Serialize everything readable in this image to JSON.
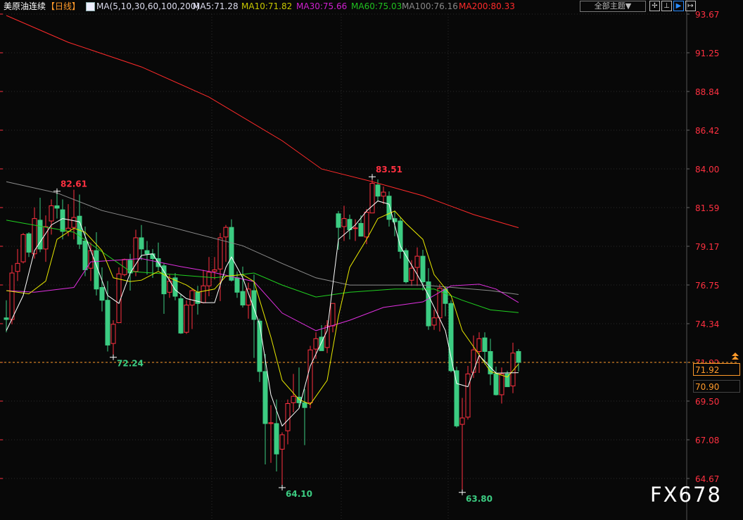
{
  "header": {
    "instrument": "美原油连续",
    "period": "【日线】",
    "ma_params": "MA(5,10,30,60,100,200)",
    "ma5": "MA5:71.28",
    "ma10": "MA10:71.82",
    "ma30": "MA30:75.66",
    "ma60": "MA60:75.03",
    "ma100": "MA100:76.16",
    "ma200": "MA200:80.33",
    "theme_button": "全部主题▼",
    "tools": [
      {
        "icon": "crosshair-icon",
        "glyph": "✢"
      },
      {
        "icon": "range-icon",
        "glyph": "⊥"
      },
      {
        "icon": "play-cursor-icon",
        "glyph": "▶"
      },
      {
        "icon": "move-right-icon",
        "glyph": "↦"
      }
    ]
  },
  "price_boxes": {
    "last": "71.92",
    "secondary": "70.90"
  },
  "watermark": "FX678",
  "colors": {
    "up": "#ff3040",
    "down": "#3ccc82",
    "ma5": "#ffffff",
    "ma10": "#e8e800",
    "ma30": "#e030e0",
    "ma60": "#20d020",
    "ma100": "#8c8c8c",
    "ma200": "#ff2a2a",
    "axis_text": "#ff3040",
    "last_line": "#ff9a2a"
  },
  "chart_data": {
    "type": "candlestick",
    "y_ticks": [
      "93.67",
      "91.25",
      "88.84",
      "86.42",
      "84.00",
      "81.59",
      "79.17",
      "76.75",
      "74.34",
      "71.92",
      "69.50",
      "67.08",
      "64.67"
    ],
    "ylim": [
      64.67,
      93.67
    ],
    "grid": true,
    "last_price": 71.92,
    "candles_ohlc": [
      [
        74.7,
        75.8,
        73.8,
        74.6
      ],
      [
        74.6,
        78.0,
        74.3,
        77.5
      ],
      [
        77.6,
        79.0,
        77.0,
        78.1
      ],
      [
        78.2,
        80.0,
        78.1,
        79.9
      ],
      [
        79.95,
        80.05,
        78.5,
        78.8
      ],
      [
        78.7,
        81.6,
        78.4,
        80.9
      ],
      [
        80.8,
        82.2,
        78.8,
        79.0
      ],
      [
        79.0,
        81.1,
        78.2,
        80.4
      ],
      [
        80.75,
        82.1,
        79.9,
        81.7
      ],
      [
        81.7,
        82.61,
        80.9,
        81.55
      ],
      [
        81.45,
        82.1,
        79.6,
        80.1
      ],
      [
        80.1,
        81.8,
        79.8,
        80.3
      ],
      [
        80.35,
        82.7,
        79.6,
        80.97
      ],
      [
        81.05,
        82.4,
        79.0,
        79.3
      ],
      [
        79.5,
        80.4,
        77.3,
        77.7
      ],
      [
        77.8,
        79.4,
        77.0,
        78.9
      ],
      [
        78.9,
        80.05,
        76.1,
        76.5
      ],
      [
        76.6,
        77.85,
        75.1,
        75.8
      ],
      [
        75.8,
        77.0,
        72.6,
        73.0
      ],
      [
        73.1,
        74.55,
        72.24,
        74.3
      ],
      [
        74.4,
        77.85,
        74.4,
        77.45
      ],
      [
        77.4,
        78.4,
        77.3,
        78.35
      ],
      [
        78.3,
        78.7,
        76.4,
        77.5
      ],
      [
        77.6,
        80.2,
        77.3,
        79.7
      ],
      [
        79.7,
        80.5,
        78.3,
        79.0
      ],
      [
        78.9,
        79.5,
        77.4,
        78.7
      ],
      [
        78.7,
        79.0,
        77.2,
        78.4
      ],
      [
        78.4,
        79.4,
        77.65,
        77.9
      ],
      [
        77.95,
        78.1,
        74.95,
        76.2
      ],
      [
        76.3,
        77.4,
        75.95,
        77.0
      ],
      [
        77.2,
        77.5,
        75.8,
        76.05
      ],
      [
        75.9,
        76.2,
        73.7,
        73.75
      ],
      [
        73.8,
        75.8,
        73.7,
        75.5
      ],
      [
        75.5,
        76.5,
        74.0,
        76.4
      ],
      [
        76.3,
        76.7,
        74.9,
        75.6
      ],
      [
        75.65,
        77.7,
        75.6,
        76.7
      ],
      [
        76.7,
        78.5,
        76.05,
        77.55
      ],
      [
        77.6,
        78.5,
        77.1,
        77.7
      ],
      [
        77.75,
        80.0,
        75.75,
        79.7
      ],
      [
        79.75,
        80.5,
        78.2,
        80.35
      ],
      [
        80.35,
        80.85,
        76.97,
        77.05
      ],
      [
        77.2,
        77.6,
        75.95,
        76.3
      ],
      [
        76.35,
        77.9,
        75.35,
        75.5
      ],
      [
        75.5,
        76.9,
        74.65,
        76.5
      ],
      [
        76.4,
        77.4,
        72.2,
        74.6
      ],
      [
        74.5,
        74.65,
        70.7,
        71.35
      ],
      [
        71.35,
        72.45,
        65.55,
        68.1
      ],
      [
        68.1,
        69.25,
        65.65,
        68.15
      ],
      [
        68.1,
        69.6,
        65.11,
        66.2
      ],
      [
        66.5,
        67.55,
        64.1,
        67.4
      ],
      [
        67.65,
        69.6,
        66.8,
        69.35
      ],
      [
        69.4,
        71.2,
        68.8,
        69.8
      ],
      [
        69.75,
        71.6,
        69.1,
        69.4
      ],
      [
        69.4,
        70.25,
        66.75,
        69.1
      ],
      [
        69.4,
        72.95,
        69.06,
        72.7
      ],
      [
        72.75,
        73.8,
        72.14,
        73.4
      ],
      [
        73.5,
        74.25,
        72.65,
        72.65
      ],
      [
        72.85,
        74.55,
        72.5,
        74.2
      ],
      [
        74.2,
        75.6,
        73.8,
        75.6
      ],
      [
        81.2,
        81.37,
        78.95,
        80.35
      ],
      [
        80.4,
        81.7,
        79.5,
        80.9
      ],
      [
        80.85,
        81.15,
        79.6,
        80.2
      ],
      [
        80.3,
        80.85,
        79.5,
        80.32
      ],
      [
        80.6,
        81.1,
        79.8,
        79.8
      ],
      [
        79.75,
        81.5,
        79.3,
        81.3
      ],
      [
        81.25,
        83.51,
        81.25,
        83.1
      ],
      [
        83.0,
        83.35,
        82.0,
        82.3
      ],
      [
        82.3,
        82.9,
        81.8,
        82.55
      ],
      [
        82.3,
        82.6,
        80.4,
        80.85
      ],
      [
        80.9,
        81.4,
        79.8,
        80.7
      ],
      [
        80.75,
        80.95,
        78.4,
        78.85
      ],
      [
        78.9,
        79.05,
        76.85,
        76.95
      ],
      [
        77.05,
        78.3,
        76.7,
        77.8
      ],
      [
        77.85,
        79.1,
        76.7,
        78.55
      ],
      [
        78.55,
        78.95,
        76.4,
        76.95
      ],
      [
        76.95,
        77.8,
        73.95,
        74.2
      ],
      [
        74.25,
        75.2,
        73.95,
        74.7
      ],
      [
        74.7,
        76.8,
        73.85,
        76.55
      ],
      [
        76.5,
        76.65,
        74.8,
        75.6
      ],
      [
        75.6,
        75.8,
        71.3,
        71.4
      ],
      [
        71.4,
        71.65,
        67.85,
        67.95
      ],
      [
        68.05,
        69.7,
        63.8,
        68.45
      ],
      [
        68.5,
        71.7,
        68.35,
        71.2
      ],
      [
        71.3,
        73.6,
        70.95,
        72.7
      ],
      [
        72.6,
        73.8,
        71.26,
        73.4
      ],
      [
        73.45,
        73.8,
        71.8,
        72.6
      ],
      [
        72.6,
        73.4,
        70.5,
        71.2
      ],
      [
        71.2,
        71.65,
        69.85,
        69.9
      ],
      [
        69.9,
        71.6,
        69.35,
        71.2
      ],
      [
        71.2,
        71.4,
        70.4,
        70.4
      ],
      [
        70.45,
        73.15,
        70.0,
        72.5
      ],
      [
        72.6,
        72.75,
        71.35,
        71.92
      ]
    ],
    "moving_averages": [
      {
        "name": "MA200",
        "color_key": "ma200",
        "points": [
          [
            1,
            93.58
          ],
          [
            12,
            91.91
          ],
          [
            25,
            90.37
          ],
          [
            37,
            88.49
          ],
          [
            50,
            85.76
          ],
          [
            57,
            84.0
          ],
          [
            66,
            83.21
          ],
          [
            75,
            82.33
          ],
          [
            84,
            81.15
          ],
          [
            92,
            80.33
          ]
        ]
      },
      {
        "name": "MA100",
        "color_key": "ma100",
        "points": [
          [
            1,
            83.2
          ],
          [
            10,
            82.5
          ],
          [
            18,
            81.4
          ],
          [
            31,
            80.3
          ],
          [
            43,
            79.2
          ],
          [
            50,
            78.1
          ],
          [
            56,
            77.2
          ],
          [
            62,
            76.75
          ],
          [
            75,
            76.75
          ],
          [
            87,
            76.4
          ],
          [
            92,
            76.16
          ]
        ]
      },
      {
        "name": "MA60",
        "color_key": "ma60",
        "points": [
          [
            1,
            80.8
          ],
          [
            13,
            80.05
          ],
          [
            23,
            77.6
          ],
          [
            31,
            77.4
          ],
          [
            38,
            77.2
          ],
          [
            45,
            77.5
          ],
          [
            50,
            76.75
          ],
          [
            56,
            76.0
          ],
          [
            62,
            76.3
          ],
          [
            70,
            76.5
          ],
          [
            77,
            76.5
          ],
          [
            82,
            75.8
          ],
          [
            87,
            75.2
          ],
          [
            92,
            75.03
          ]
        ]
      },
      {
        "name": "MA30",
        "color_key": "ma30",
        "points": [
          [
            1,
            76.4
          ],
          [
            6,
            76.3
          ],
          [
            13,
            76.6
          ],
          [
            16,
            78.2
          ],
          [
            25,
            78.4
          ],
          [
            32,
            77.9
          ],
          [
            37,
            77.6
          ],
          [
            45,
            76.97
          ],
          [
            50,
            75.0
          ],
          [
            56,
            73.9
          ],
          [
            62,
            74.55
          ],
          [
            68,
            75.35
          ],
          [
            75,
            75.7
          ],
          [
            80,
            76.7
          ],
          [
            85,
            76.8
          ],
          [
            88,
            76.5
          ],
          [
            92,
            75.66
          ]
        ]
      },
      {
        "name": "MA10",
        "color_key": "ma10",
        "points": [
          [
            1,
            76.4
          ],
          [
            5,
            76.2
          ],
          [
            8,
            77.0
          ],
          [
            10,
            79.6
          ],
          [
            13,
            80.3
          ],
          [
            15,
            80.05
          ],
          [
            18,
            78.9
          ],
          [
            20,
            77.2
          ],
          [
            23,
            76.97
          ],
          [
            25,
            77.05
          ],
          [
            28,
            77.6
          ],
          [
            30,
            77.2
          ],
          [
            33,
            76.75
          ],
          [
            35,
            76.3
          ],
          [
            38,
            76.5
          ],
          [
            40,
            77.3
          ],
          [
            43,
            77.4
          ],
          [
            45,
            76.97
          ],
          [
            48,
            73.5
          ],
          [
            50,
            70.8
          ],
          [
            53,
            69.6
          ],
          [
            55,
            69.3
          ],
          [
            58,
            70.8
          ],
          [
            60,
            74.8
          ],
          [
            62,
            77.85
          ],
          [
            65,
            79.6
          ],
          [
            67,
            80.9
          ],
          [
            70,
            81.37
          ],
          [
            72,
            80.6
          ],
          [
            75,
            79.6
          ],
          [
            77,
            77.4
          ],
          [
            80,
            76.1
          ],
          [
            82,
            73.9
          ],
          [
            85,
            72.4
          ],
          [
            87,
            71.35
          ],
          [
            90,
            71.0
          ],
          [
            92,
            71.82
          ]
        ]
      },
      {
        "name": "MA5",
        "color_key": "ma5",
        "points": [
          [
            1,
            73.9
          ],
          [
            4,
            76.1
          ],
          [
            6,
            78.9
          ],
          [
            9,
            80.5
          ],
          [
            11,
            80.9
          ],
          [
            14,
            80.7
          ],
          [
            16,
            78.9
          ],
          [
            19,
            76.1
          ],
          [
            21,
            75.6
          ],
          [
            23,
            77.5
          ],
          [
            25,
            78.6
          ],
          [
            27,
            78.7
          ],
          [
            29,
            77.6
          ],
          [
            31,
            76.45
          ],
          [
            33,
            75.9
          ],
          [
            36,
            75.65
          ],
          [
            38,
            75.65
          ],
          [
            40,
            77.85
          ],
          [
            41,
            78.5
          ],
          [
            43,
            77.2
          ],
          [
            46,
            74.3
          ],
          [
            48,
            69.9
          ],
          [
            50,
            67.95
          ],
          [
            53,
            69.05
          ],
          [
            55,
            71.7
          ],
          [
            58,
            73.9
          ],
          [
            60,
            79.6
          ],
          [
            63,
            80.5
          ],
          [
            65,
            81.37
          ],
          [
            67,
            82.0
          ],
          [
            69,
            81.8
          ],
          [
            71,
            79.17
          ],
          [
            74,
            77.4
          ],
          [
            76,
            76.1
          ],
          [
            79,
            73.9
          ],
          [
            81,
            70.6
          ],
          [
            83,
            70.4
          ],
          [
            85,
            72.35
          ],
          [
            88,
            71.25
          ],
          [
            92,
            71.28
          ]
        ]
      }
    ],
    "annotations": [
      {
        "label": "82.61",
        "candle": 10,
        "price": 82.61,
        "kind": "high"
      },
      {
        "label": "72.24",
        "candle": 20,
        "price": 72.24,
        "kind": "low"
      },
      {
        "label": "64.10",
        "candle": 50,
        "price": 64.1,
        "kind": "low"
      },
      {
        "label": "83.51",
        "candle": 66,
        "price": 83.51,
        "kind": "high"
      },
      {
        "label": "63.80",
        "candle": 82,
        "price": 63.8,
        "kind": "low"
      }
    ],
    "period_separators_after_candle": [
      37,
      60,
      79
    ]
  }
}
